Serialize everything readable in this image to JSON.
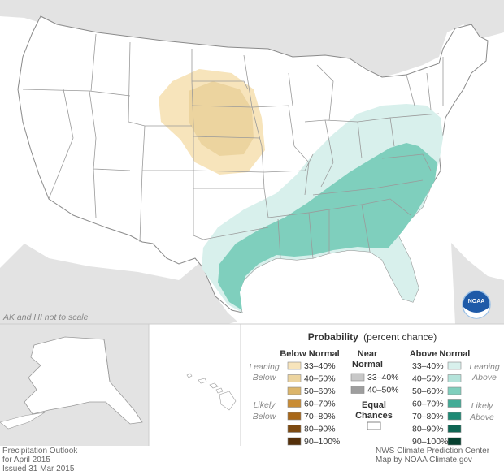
{
  "map": {
    "scale_note": "AK and HI not to scale"
  },
  "legend": {
    "title_bold": "Probability",
    "title_normal": "(percent chance)",
    "below_normal": {
      "header": "Below Normal",
      "leaning": [
        "Leaning",
        "Below"
      ],
      "likely": [
        "Likely",
        "Below"
      ],
      "bins": [
        {
          "label": "33–40%",
          "color": "#f7e4bb"
        },
        {
          "label": "40–50%",
          "color": "#ecd49f"
        },
        {
          "label": "50–60%",
          "color": "#dcb56a"
        },
        {
          "label": "60–70%",
          "color": "#c98c34"
        },
        {
          "label": "70–80%",
          "color": "#a86718"
        },
        {
          "label": "80–90%",
          "color": "#7d4a11"
        },
        {
          "label": "90–100%",
          "color": "#55300a"
        }
      ]
    },
    "near_normal": {
      "header": [
        "Near",
        "Normal"
      ],
      "bins": [
        {
          "label": "33–40%",
          "color": "#c8c8c8"
        },
        {
          "label": "40–50%",
          "color": "#9e9e9e"
        }
      ],
      "equal_chances": [
        "Equal",
        "Chances"
      ]
    },
    "above_normal": {
      "header": "Above Normal",
      "leaning": [
        "Leaning",
        "Above"
      ],
      "likely": [
        "Likely",
        "Above"
      ],
      "bins": [
        {
          "label": "33–40%",
          "color": "#d8f0ec"
        },
        {
          "label": "40–50%",
          "color": "#b4e3da"
        },
        {
          "label": "50–60%",
          "color": "#7fcfbd"
        },
        {
          "label": "60–70%",
          "color": "#42ab96"
        },
        {
          "label": "70–80%",
          "color": "#1d8a75"
        },
        {
          "label": "80–90%",
          "color": "#0e6553"
        },
        {
          "label": "90–100%",
          "color": "#05402f"
        }
      ]
    }
  },
  "footer": {
    "left": [
      "Precipitation Outlook",
      "for April 2015",
      "Issued 31 Mar 2015"
    ],
    "right": [
      "NWS Climate Prediction Center",
      "Map by NOAA Climate.gov"
    ]
  },
  "logo": {
    "text": "NOAA"
  },
  "colors": {
    "ocean": "#ffffff",
    "land_outside": "#e3e3e3",
    "state_fill": "#ffffff",
    "state_stroke": "#9a9a9a",
    "below_leaning": "#f7e4bb",
    "below_40": "#ecd49f",
    "above_leaning": "#d8f0ec",
    "above_50": "#7fcfbd"
  }
}
